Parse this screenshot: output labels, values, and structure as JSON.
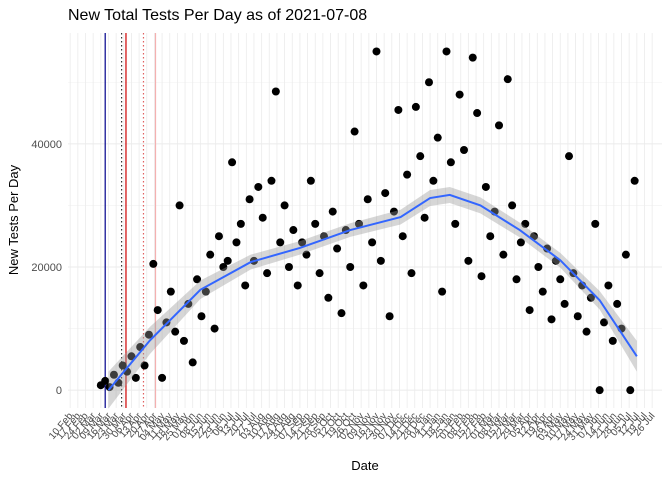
{
  "chart_data": {
    "type": "scatter",
    "title": "New Total Tests Per Day as of 2021-07-08",
    "x_label": "Date",
    "y_label": "New Tests Per Day",
    "point_color": "#000000",
    "x": [
      28,
      32,
      36,
      40,
      44,
      48,
      52,
      56,
      60,
      64,
      68,
      72,
      76,
      80,
      84,
      88,
      92,
      96,
      100,
      104,
      108,
      112,
      116,
      120,
      124,
      128,
      132,
      136,
      140,
      144,
      148,
      152,
      156,
      160,
      164,
      168,
      172,
      176,
      180,
      184,
      188,
      192,
      196,
      200,
      204,
      208,
      212,
      216,
      220,
      224,
      228,
      232,
      236,
      240,
      244,
      248,
      252,
      256,
      260,
      264,
      268,
      272,
      276,
      280,
      284,
      288,
      292,
      296,
      300,
      304,
      308,
      312,
      316,
      320,
      324,
      328,
      332,
      336,
      340,
      344,
      348,
      352,
      356,
      360,
      364,
      368,
      372,
      376,
      380,
      384,
      388,
      392,
      396,
      400,
      404,
      408,
      412,
      416,
      420,
      424,
      428,
      432,
      436,
      440,
      444,
      448,
      452,
      456,
      460,
      464,
      468,
      472,
      476,
      480,
      484,
      488,
      492,
      496,
      500,
      504,
      508,
      512,
      516
    ],
    "values": [
      800,
      1500,
      500,
      2500,
      1200,
      4000,
      3000,
      5500,
      2000,
      7000,
      4000,
      9000,
      20500,
      13000,
      2000,
      11000,
      16000,
      9500,
      30000,
      8000,
      14000,
      4500,
      18000,
      12000,
      16000,
      22000,
      10000,
      25000,
      20000,
      21000,
      37000,
      24000,
      27000,
      17000,
      31000,
      21000,
      33000,
      28000,
      19000,
      34000,
      48500,
      24000,
      30000,
      20000,
      26000,
      17000,
      24000,
      22000,
      34000,
      27000,
      19000,
      25000,
      15000,
      29000,
      23000,
      12500,
      26000,
      20000,
      42000,
      27000,
      17000,
      31000,
      24000,
      55000,
      21000,
      32000,
      12000,
      29000,
      45500,
      25000,
      35000,
      19000,
      46000,
      38000,
      28000,
      50000,
      34000,
      41000,
      16000,
      55000,
      37000,
      27000,
      48000,
      39000,
      21000,
      54000,
      45000,
      18500,
      33000,
      25000,
      29000,
      43000,
      22000,
      50500,
      30000,
      18000,
      24000,
      27000,
      13000,
      25000,
      20000,
      16000,
      23000,
      11500,
      21000,
      18000,
      14000,
      38000,
      19000,
      12000,
      17000,
      9500,
      15000,
      27000,
      0,
      11000,
      17000,
      8000,
      14000,
      10000,
      22000,
      0,
      34000
    ],
    "smooth": {
      "color": "#3366FF",
      "band_color": "#999999",
      "x": [
        35,
        73,
        119,
        165,
        210,
        256,
        302,
        329,
        347,
        375,
        411,
        448,
        484,
        518
      ],
      "values": [
        0,
        8100,
        16300,
        20800,
        23100,
        26000,
        28100,
        31200,
        31700,
        30000,
        26000,
        21100,
        14600,
        5500
      ],
      "upper": [
        3000,
        10300,
        17800,
        22000,
        24200,
        27100,
        29300,
        32500,
        33000,
        31300,
        27200,
        22300,
        16100,
        8000
      ],
      "lower": [
        -3000,
        5900,
        14800,
        19600,
        22000,
        24900,
        26900,
        29900,
        30400,
        28700,
        24800,
        19900,
        13100,
        3000
      ]
    },
    "vlines": [
      {
        "x": 32,
        "color": "#00008b",
        "dash": "solid"
      },
      {
        "x": 47,
        "color": "#333333",
        "dash": "dotted"
      },
      {
        "x": 51,
        "color": "#cc0000",
        "dash": "solid"
      },
      {
        "x": 67,
        "color": "#e06060",
        "dash": "dotted"
      },
      {
        "x": 78,
        "color": "#f4b0b0",
        "dash": "solid"
      }
    ],
    "xlim": [
      -2,
      541
    ],
    "ylim": [
      -2900,
      58000
    ],
    "yticks": [
      0,
      20000,
      40000
    ],
    "xticks": [
      {
        "value": 0,
        "label": "10 Feb"
      },
      {
        "value": 7,
        "label": "17 Feb"
      },
      {
        "value": 14,
        "label": "24 Feb"
      },
      {
        "value": 21,
        "label": "02 Mar"
      },
      {
        "value": 28,
        "label": "09 Mar"
      },
      {
        "value": 35,
        "label": "16 Mar"
      },
      {
        "value": 42,
        "label": "23 Mar"
      },
      {
        "value": 49,
        "label": "30 Mar"
      },
      {
        "value": 56,
        "label": "06 Apr"
      },
      {
        "value": 63,
        "label": "13 Apr"
      },
      {
        "value": 70,
        "label": "20 Apr"
      },
      {
        "value": 77,
        "label": "27 Apr"
      },
      {
        "value": 84,
        "label": "04 May"
      },
      {
        "value": 91,
        "label": "11 May"
      },
      {
        "value": 98,
        "label": "18 May"
      },
      {
        "value": 105,
        "label": "25 May"
      },
      {
        "value": 112,
        "label": "01 Jun"
      },
      {
        "value": 119,
        "label": "08 Jun"
      },
      {
        "value": 126,
        "label": "15 Jun"
      },
      {
        "value": 133,
        "label": "22 Jun"
      },
      {
        "value": 140,
        "label": "29 Jun"
      },
      {
        "value": 147,
        "label": "06 Jul"
      },
      {
        "value": 154,
        "label": "13 Jul"
      },
      {
        "value": 161,
        "label": "20 Jul"
      },
      {
        "value": 168,
        "label": "27 Jul"
      },
      {
        "value": 175,
        "label": "03 Aug"
      },
      {
        "value": 182,
        "label": "10 Aug"
      },
      {
        "value": 189,
        "label": "17 Aug"
      },
      {
        "value": 196,
        "label": "24 Aug"
      },
      {
        "value": 203,
        "label": "31 Aug"
      },
      {
        "value": 210,
        "label": "07 Sep"
      },
      {
        "value": 217,
        "label": "14 Sep"
      },
      {
        "value": 224,
        "label": "21 Sep"
      },
      {
        "value": 231,
        "label": "28 Sep"
      },
      {
        "value": 238,
        "label": "05 Oct"
      },
      {
        "value": 245,
        "label": "12 Oct"
      },
      {
        "value": 252,
        "label": "19 Oct"
      },
      {
        "value": 259,
        "label": "26 Oct"
      },
      {
        "value": 266,
        "label": "02 Nov"
      },
      {
        "value": 273,
        "label": "09 Nov"
      },
      {
        "value": 280,
        "label": "16 Nov"
      },
      {
        "value": 287,
        "label": "23 Nov"
      },
      {
        "value": 294,
        "label": "30 Nov"
      },
      {
        "value": 301,
        "label": "07 Dec"
      },
      {
        "value": 308,
        "label": "14 Dec"
      },
      {
        "value": 315,
        "label": "21 Dec"
      },
      {
        "value": 322,
        "label": "28 Dec"
      },
      {
        "value": 329,
        "label": "04 Jan"
      },
      {
        "value": 336,
        "label": "11 Jan"
      },
      {
        "value": 343,
        "label": "18 Jan"
      },
      {
        "value": 350,
        "label": "25 Jan"
      },
      {
        "value": 357,
        "label": "01 Feb"
      },
      {
        "value": 364,
        "label": "08 Feb"
      },
      {
        "value": 371,
        "label": "15 Feb"
      },
      {
        "value": 378,
        "label": "22 Feb"
      },
      {
        "value": 385,
        "label": "01 Mar"
      },
      {
        "value": 392,
        "label": "08 Mar"
      },
      {
        "value": 399,
        "label": "15 Mar"
      },
      {
        "value": 406,
        "label": "22 Mar"
      },
      {
        "value": 413,
        "label": "29 Mar"
      },
      {
        "value": 420,
        "label": "05 Apr"
      },
      {
        "value": 427,
        "label": "12 Apr"
      },
      {
        "value": 434,
        "label": "19 Apr"
      },
      {
        "value": 441,
        "label": "26 Apr"
      },
      {
        "value": 448,
        "label": "03 May"
      },
      {
        "value": 455,
        "label": "10 May"
      },
      {
        "value": 462,
        "label": "17 May"
      },
      {
        "value": 469,
        "label": "24 May"
      },
      {
        "value": 476,
        "label": "31 May"
      },
      {
        "value": 483,
        "label": "07 Jun"
      },
      {
        "value": 490,
        "label": "14 Jun"
      },
      {
        "value": 497,
        "label": "21 Jun"
      },
      {
        "value": 504,
        "label": "28 Jun"
      },
      {
        "value": 511,
        "label": "05 Jul"
      },
      {
        "value": 518,
        "label": "12 Jul"
      },
      {
        "value": 525,
        "label": "19 Jul"
      },
      {
        "value": 532,
        "label": "26 Jul"
      }
    ],
    "grid": true
  }
}
